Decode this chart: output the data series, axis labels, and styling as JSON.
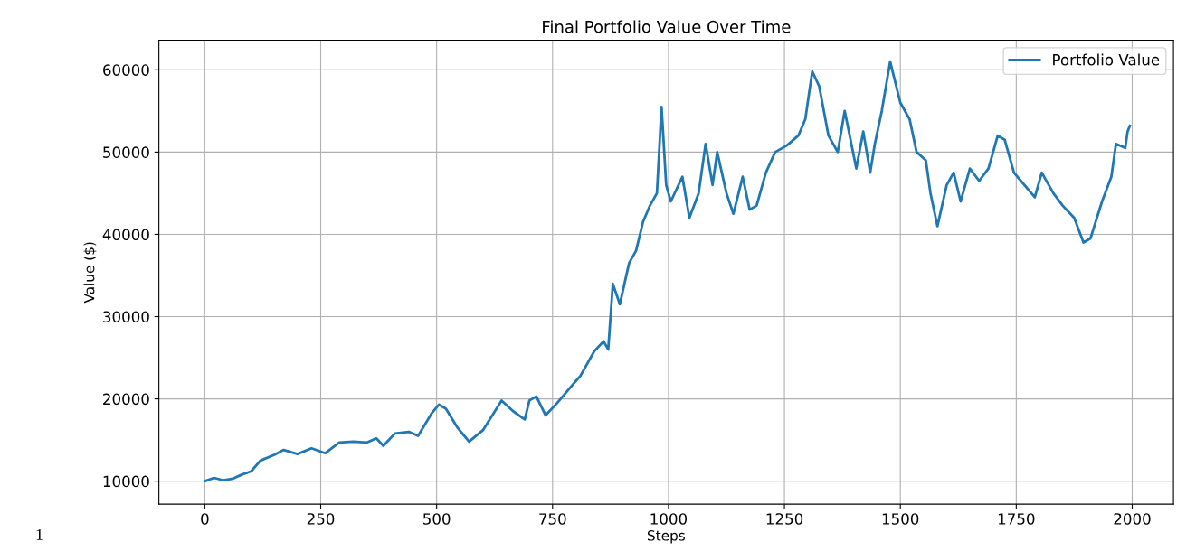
{
  "chart_data": {
    "type": "line",
    "title": "Final Portfolio Value Over Time",
    "xlabel": "Steps",
    "ylabel": "Value ($)",
    "annotations": [
      "1"
    ],
    "xlim": [
      -99,
      2089
    ],
    "xticks": [
      0,
      250,
      500,
      750,
      1000,
      1250,
      1500,
      1750,
      2000
    ],
    "ylim": [
      7200,
      63600
    ],
    "yticks": [
      10000,
      20000,
      30000,
      40000,
      50000,
      60000
    ],
    "grid": true,
    "legend": "top right",
    "series": [
      {
        "name": "Portfolio Value",
        "color": "#1f77b4",
        "x": [
          0,
          20,
          40,
          60,
          80,
          100,
          120,
          150,
          170,
          200,
          230,
          260,
          290,
          320,
          350,
          370,
          385,
          410,
          440,
          460,
          490,
          505,
          520,
          545,
          570,
          600,
          640,
          665,
          690,
          700,
          715,
          735,
          760,
          790,
          810,
          840,
          860,
          870,
          880,
          895,
          915,
          930,
          945,
          960,
          975,
          985,
          995,
          1005,
          1030,
          1045,
          1065,
          1080,
          1095,
          1105,
          1125,
          1140,
          1160,
          1175,
          1190,
          1210,
          1230,
          1255,
          1280,
          1295,
          1310,
          1325,
          1345,
          1365,
          1380,
          1405,
          1420,
          1435,
          1445,
          1460,
          1478,
          1500,
          1520,
          1535,
          1555,
          1565,
          1580,
          1600,
          1615,
          1630,
          1650,
          1670,
          1690,
          1710,
          1725,
          1745,
          1760,
          1790,
          1805,
          1830,
          1850,
          1875,
          1895,
          1910,
          1935,
          1955,
          1965,
          1985,
          1990,
          1995
        ],
        "values": [
          10000,
          10400,
          10100,
          10300,
          10800,
          11200,
          12500,
          13200,
          13800,
          13300,
          14000,
          13400,
          14700,
          14800,
          14700,
          15200,
          14300,
          15800,
          16000,
          15500,
          18300,
          19300,
          18800,
          16500,
          14800,
          16200,
          19800,
          18500,
          17500,
          19800,
          20300,
          18000,
          19500,
          21500,
          22800,
          25800,
          27000,
          26000,
          34000,
          31500,
          36500,
          38000,
          41500,
          43500,
          45000,
          55500,
          46000,
          44000,
          47000,
          42000,
          45000,
          51000,
          46000,
          50000,
          45000,
          42500,
          47000,
          43000,
          43500,
          47500,
          50000,
          50800,
          52000,
          54000,
          59800,
          58000,
          52000,
          50000,
          55000,
          48000,
          52500,
          47500,
          51000,
          55000,
          61000,
          56000,
          54000,
          50000,
          49000,
          45000,
          41000,
          46000,
          47500,
          44000,
          48000,
          46500,
          48000,
          52000,
          51500,
          47500,
          46500,
          44500,
          47500,
          45000,
          43500,
          42000,
          39000,
          39500,
          44000,
          47000,
          51000,
          50500,
          52500,
          53200
        ]
      }
    ]
  }
}
